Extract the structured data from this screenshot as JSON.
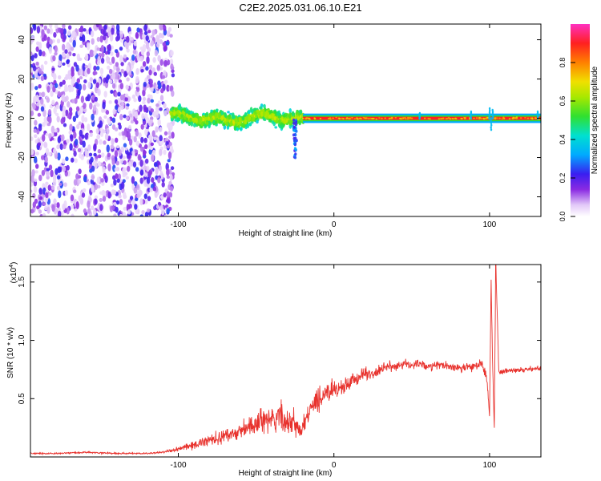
{
  "title": "C2E2.2025.031.06.10.E21",
  "chart_data": [
    {
      "type": "heatmap",
      "title": "",
      "xlabel": "Height of straight line (km)",
      "ylabel": "Frequency (Hz)",
      "xlim": [
        -195,
        133
      ],
      "ylim": [
        -50,
        48
      ],
      "xticks": [
        -100,
        0,
        100
      ],
      "xtick_labels": [
        "-100",
        "0",
        "100"
      ],
      "yticks": [
        -40,
        -20,
        0,
        20,
        40
      ],
      "ytick_labels": [
        "-40",
        "-20",
        "0",
        "20",
        "40"
      ],
      "grid": false,
      "colorbar": {
        "label": "Normalized spectral amplitude",
        "range": [
          0,
          1
        ],
        "ticks": [
          0.0,
          0.2,
          0.4,
          0.6,
          0.8
        ],
        "tick_labels": [
          "0.0",
          "0.2",
          "0.4",
          "0.6",
          "0.8"
        ],
        "colormap": "rainbow (white-purple-blue-cyan-green-yellow-orange-red-magenta)"
      },
      "regions": [
        {
          "x_range": [
            -195,
            -105
          ],
          "frequency_range": [
            -50,
            48
          ],
          "amplitude": "low (0.05-0.3), scattered noise"
        },
        {
          "x_range": [
            -105,
            -20
          ],
          "frequency_center": 0,
          "frequency_halfwidth": 6,
          "amplitude": "medium (0.3-0.6), wavy band"
        },
        {
          "x_range": [
            -20,
            133
          ],
          "frequency_center": 0,
          "frequency_halfwidth": 2,
          "amplitude": "high (0.7-0.95), narrow line"
        }
      ]
    },
    {
      "type": "line",
      "title": "",
      "xlabel": "Height of straight line (km)",
      "ylabel": "SNR (10 * v/v)",
      "y_scale_label": "(x10",
      "y_scale_exponent": "4",
      "y_scale_suffix": ")",
      "xlim": [
        -195,
        133
      ],
      "ylim": [
        0,
        1.65
      ],
      "xticks": [
        -100,
        0,
        100
      ],
      "xtick_labels": [
        "-100",
        "0",
        "100"
      ],
      "yticks": [
        0.5,
        1.0,
        1.5
      ],
      "ytick_labels": [
        "0.5",
        "1.0",
        "1.5"
      ],
      "grid": false,
      "color": "#e8322d",
      "x": [
        -195,
        -180,
        -160,
        -140,
        -120,
        -110,
        -100,
        -90,
        -80,
        -70,
        -60,
        -50,
        -45,
        -40,
        -35,
        -30,
        -26,
        -22,
        -18,
        -14,
        -10,
        -5,
        0,
        5,
        10,
        15,
        20,
        25,
        30,
        35,
        40,
        45,
        50,
        55,
        60,
        70,
        80,
        90,
        95,
        98,
        100,
        101,
        102,
        103,
        104,
        106,
        110,
        120,
        133
      ],
      "y": [
        0.03,
        0.03,
        0.04,
        0.03,
        0.03,
        0.04,
        0.07,
        0.1,
        0.15,
        0.18,
        0.22,
        0.28,
        0.33,
        0.3,
        0.36,
        0.28,
        0.32,
        0.2,
        0.32,
        0.42,
        0.5,
        0.54,
        0.6,
        0.58,
        0.63,
        0.68,
        0.72,
        0.7,
        0.75,
        0.78,
        0.77,
        0.8,
        0.78,
        0.81,
        0.77,
        0.79,
        0.76,
        0.78,
        0.8,
        0.7,
        0.35,
        1.52,
        0.75,
        0.25,
        1.65,
        0.72,
        0.74,
        0.75,
        0.76
      ],
      "noise": [
        0.01,
        0.01,
        0.01,
        0.01,
        0.01,
        0.01,
        0.03,
        0.05,
        0.07,
        0.09,
        0.11,
        0.14,
        0.16,
        0.16,
        0.18,
        0.14,
        0.18,
        0.1,
        0.12,
        0.12,
        0.14,
        0.12,
        0.12,
        0.1,
        0.1,
        0.08,
        0.08,
        0.07,
        0.06,
        0.06,
        0.05,
        0.06,
        0.05,
        0.05,
        0.05,
        0.05,
        0.05,
        0.06,
        0.08,
        0.1,
        0.05,
        0.02,
        0.05,
        0.02,
        0.02,
        0.05,
        0.03,
        0.03,
        0.03
      ]
    }
  ]
}
